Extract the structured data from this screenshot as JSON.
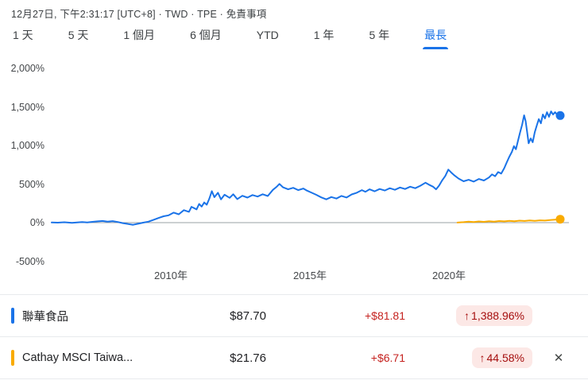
{
  "header": {
    "timestamp": "12月27日, 下午2:31:17 [UTC+8] · TWD · TPE · 免責事項"
  },
  "tabs": [
    {
      "id": "1d",
      "label": "1 天",
      "active": false
    },
    {
      "id": "5d",
      "label": "5 天",
      "active": false
    },
    {
      "id": "1m",
      "label": "1 個月",
      "active": false
    },
    {
      "id": "6m",
      "label": "6 個月",
      "active": false
    },
    {
      "id": "ytd",
      "label": "YTD",
      "active": false
    },
    {
      "id": "1y",
      "label": "1 年",
      "active": false
    },
    {
      "id": "5y",
      "label": "5 年",
      "active": false
    },
    {
      "id": "max",
      "label": "最長",
      "active": true
    }
  ],
  "chart_data": {
    "type": "line",
    "ylabel": "percent change",
    "ylim": [
      -500,
      2000
    ],
    "baseline_value": 0,
    "baseline_color": "#9aa0a6",
    "y_ticks": [
      {
        "label": "2,000%",
        "value": 2000
      },
      {
        "label": "1,500%",
        "value": 1500
      },
      {
        "label": "1,000%",
        "value": 1000
      },
      {
        "label": "500%",
        "value": 500
      },
      {
        "label": "0%",
        "value": 0
      },
      {
        "label": "-500%",
        "value": -500
      }
    ],
    "x_ticks": [
      {
        "label": "2010年",
        "f": 0.2344
      },
      {
        "label": "2015年",
        "f": 0.5078
      },
      {
        "label": "2020年",
        "f": 0.7813
      }
    ],
    "series": [
      {
        "name": "聯華食品",
        "color": "#1a73e8",
        "end_value": 1388.96,
        "points": [
          [
            0,
            2
          ],
          [
            0.012,
            0
          ],
          [
            0.025,
            5
          ],
          [
            0.04,
            -3
          ],
          [
            0.05,
            3
          ],
          [
            0.06,
            8
          ],
          [
            0.07,
            3
          ],
          [
            0.08,
            10
          ],
          [
            0.09,
            16
          ],
          [
            0.1,
            22
          ],
          [
            0.11,
            12
          ],
          [
            0.12,
            20
          ],
          [
            0.13,
            8
          ],
          [
            0.14,
            -6
          ],
          [
            0.15,
            -18
          ],
          [
            0.16,
            -28
          ],
          [
            0.17,
            -14
          ],
          [
            0.18,
            0
          ],
          [
            0.19,
            12
          ],
          [
            0.2,
            35
          ],
          [
            0.21,
            60
          ],
          [
            0.22,
            82
          ],
          [
            0.23,
            95
          ],
          [
            0.24,
            130
          ],
          [
            0.25,
            108
          ],
          [
            0.26,
            162
          ],
          [
            0.27,
            140
          ],
          [
            0.275,
            205
          ],
          [
            0.285,
            172
          ],
          [
            0.29,
            242
          ],
          [
            0.295,
            208
          ],
          [
            0.3,
            262
          ],
          [
            0.305,
            232
          ],
          [
            0.31,
            310
          ],
          [
            0.315,
            408
          ],
          [
            0.32,
            330
          ],
          [
            0.327,
            388
          ],
          [
            0.333,
            302
          ],
          [
            0.34,
            362
          ],
          [
            0.35,
            322
          ],
          [
            0.357,
            368
          ],
          [
            0.365,
            305
          ],
          [
            0.375,
            348
          ],
          [
            0.385,
            325
          ],
          [
            0.395,
            358
          ],
          [
            0.405,
            338
          ],
          [
            0.415,
            368
          ],
          [
            0.425,
            345
          ],
          [
            0.435,
            425
          ],
          [
            0.443,
            468
          ],
          [
            0.448,
            502
          ],
          [
            0.455,
            458
          ],
          [
            0.465,
            432
          ],
          [
            0.475,
            452
          ],
          [
            0.485,
            422
          ],
          [
            0.495,
            442
          ],
          [
            0.502,
            415
          ],
          [
            0.51,
            392
          ],
          [
            0.52,
            362
          ],
          [
            0.53,
            328
          ],
          [
            0.54,
            302
          ],
          [
            0.55,
            332
          ],
          [
            0.56,
            312
          ],
          [
            0.57,
            346
          ],
          [
            0.58,
            326
          ],
          [
            0.59,
            366
          ],
          [
            0.6,
            388
          ],
          [
            0.61,
            422
          ],
          [
            0.617,
            400
          ],
          [
            0.625,
            432
          ],
          [
            0.635,
            406
          ],
          [
            0.645,
            436
          ],
          [
            0.655,
            416
          ],
          [
            0.665,
            446
          ],
          [
            0.675,
            426
          ],
          [
            0.685,
            456
          ],
          [
            0.695,
            436
          ],
          [
            0.705,
            466
          ],
          [
            0.715,
            446
          ],
          [
            0.725,
            478
          ],
          [
            0.735,
            518
          ],
          [
            0.742,
            492
          ],
          [
            0.75,
            466
          ],
          [
            0.756,
            432
          ],
          [
            0.762,
            482
          ],
          [
            0.768,
            548
          ],
          [
            0.774,
            605
          ],
          [
            0.78,
            688
          ],
          [
            0.786,
            648
          ],
          [
            0.792,
            612
          ],
          [
            0.8,
            572
          ],
          [
            0.81,
            536
          ],
          [
            0.82,
            556
          ],
          [
            0.83,
            532
          ],
          [
            0.84,
            566
          ],
          [
            0.85,
            546
          ],
          [
            0.86,
            586
          ],
          [
            0.866,
            626
          ],
          [
            0.872,
            602
          ],
          [
            0.878,
            656
          ],
          [
            0.884,
            636
          ],
          [
            0.89,
            706
          ],
          [
            0.895,
            782
          ],
          [
            0.9,
            855
          ],
          [
            0.905,
            918
          ],
          [
            0.909,
            992
          ],
          [
            0.913,
            952
          ],
          [
            0.917,
            1062
          ],
          [
            0.921,
            1165
          ],
          [
            0.925,
            1265
          ],
          [
            0.929,
            1392
          ],
          [
            0.932,
            1318
          ],
          [
            0.935,
            1175
          ],
          [
            0.938,
            1028
          ],
          [
            0.942,
            1092
          ],
          [
            0.946,
            1042
          ],
          [
            0.95,
            1172
          ],
          [
            0.954,
            1262
          ],
          [
            0.958,
            1342
          ],
          [
            0.962,
            1288
          ],
          [
            0.966,
            1402
          ],
          [
            0.97,
            1352
          ],
          [
            0.974,
            1432
          ],
          [
            0.978,
            1372
          ],
          [
            0.982,
            1442
          ],
          [
            0.986,
            1402
          ],
          [
            0.99,
            1432
          ],
          [
            0.995,
            1392
          ],
          [
            1,
            1388.96
          ]
        ]
      },
      {
        "name": "Cathay MSCI Taiwa...",
        "color": "#f9ab00",
        "end_value": 44.58,
        "points": [
          [
            0.798,
            1
          ],
          [
            0.81,
            6
          ],
          [
            0.82,
            12
          ],
          [
            0.83,
            7
          ],
          [
            0.84,
            15
          ],
          [
            0.85,
            10
          ],
          [
            0.86,
            18
          ],
          [
            0.87,
            13
          ],
          [
            0.88,
            21
          ],
          [
            0.89,
            16
          ],
          [
            0.9,
            24
          ],
          [
            0.91,
            19
          ],
          [
            0.92,
            26
          ],
          [
            0.93,
            22
          ],
          [
            0.94,
            28
          ],
          [
            0.95,
            24
          ],
          [
            0.96,
            30
          ],
          [
            0.97,
            27
          ],
          [
            0.98,
            33
          ],
          [
            0.99,
            38
          ],
          [
            1,
            44.58
          ]
        ]
      }
    ]
  },
  "quotes": [
    {
      "name": "聯華食品",
      "color": "#1a73e8",
      "price": "$87.70",
      "change": "+$81.81",
      "arrow": "↑",
      "percent": "1,388.96%",
      "closable": false
    },
    {
      "name": "Cathay MSCI Taiwa...",
      "color": "#f9ab00",
      "price": "$21.76",
      "change": "+$6.71",
      "arrow": "↑",
      "percent": "44.58%",
      "closable": true
    }
  ],
  "icons": {
    "close": "✕"
  },
  "colors": {
    "accent_blue": "#1a73e8",
    "series_yellow": "#f9ab00",
    "up_red_text": "#c5221f",
    "badge_bg": "#fce8e6",
    "badge_text": "#a50e0e",
    "baseline_gray": "#9aa0a6"
  }
}
